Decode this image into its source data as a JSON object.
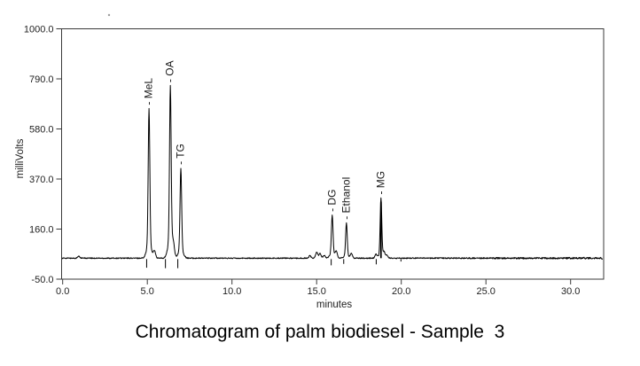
{
  "page": {
    "background": "#ffffff"
  },
  "chart_data": {
    "type": "line",
    "title": "Chromatogram of palm biodiesel - Sample  3",
    "xlabel": "minutes",
    "ylabel": "milliVolts",
    "xlim": [
      0.0,
      32.0
    ],
    "ylim": [
      -50.0,
      1000.0
    ],
    "grid": "off",
    "line_color": "#000000",
    "axis_color": "#3a3a3a",
    "baseline_mV": 38,
    "x_ticks": [
      {
        "v": 0.0,
        "label": "0.0"
      },
      {
        "v": 5.0,
        "label": "5.0"
      },
      {
        "v": 10.0,
        "label": "10.0"
      },
      {
        "v": 15.0,
        "label": "15.0"
      },
      {
        "v": 20.0,
        "label": "20.0"
      },
      {
        "v": 25.0,
        "label": "25.0"
      },
      {
        "v": 30.0,
        "label": "30.0"
      }
    ],
    "y_ticks": [
      {
        "v": 1000.0,
        "label": "1000.0"
      },
      {
        "v": 790.0,
        "label": "790.0"
      },
      {
        "v": 580.0,
        "label": "580.0"
      },
      {
        "v": 370.0,
        "label": "370.0"
      },
      {
        "v": 160.0,
        "label": "160.0"
      },
      {
        "v": -50.0,
        "label": "-50.0"
      }
    ],
    "peaks": [
      {
        "label": "MeL",
        "rt_min": 5.1,
        "apex_mV": 665,
        "foot": 0.1,
        "bold": false
      },
      {
        "label": "OA",
        "rt_min": 6.36,
        "apex_mV": 760,
        "foot": 0.12,
        "bold": false
      },
      {
        "label": "TG",
        "rt_min": 6.98,
        "apex_mV": 415,
        "foot": 0.1,
        "bold": false
      },
      {
        "label": "DG",
        "rt_min": 15.92,
        "apex_mV": 218,
        "foot": 0.12,
        "bold": false
      },
      {
        "label": "Ethanol",
        "rt_min": 16.76,
        "apex_mV": 185,
        "foot": 0.08,
        "bold": false
      },
      {
        "label": "MG",
        "rt_min": 18.8,
        "apex_mV": 290,
        "foot": 0.06,
        "bold": true
      }
    ],
    "minor_bumps": [
      [
        0.95,
        8
      ],
      [
        5.42,
        30
      ],
      [
        6.54,
        40
      ],
      [
        14.6,
        10
      ],
      [
        15.0,
        25
      ],
      [
        15.2,
        20
      ],
      [
        15.45,
        12
      ],
      [
        16.16,
        25
      ],
      [
        17.05,
        18
      ],
      [
        18.5,
        15
      ],
      [
        18.98,
        22
      ],
      [
        19.15,
        12
      ]
    ],
    "marker_ticks": [
      [
        4.96,
        40
      ],
      [
        6.07,
        42
      ],
      [
        6.8,
        42
      ],
      [
        15.86,
        30
      ],
      [
        16.6,
        24
      ],
      [
        18.52,
        26
      ],
      [
        19.98,
        14
      ]
    ]
  }
}
